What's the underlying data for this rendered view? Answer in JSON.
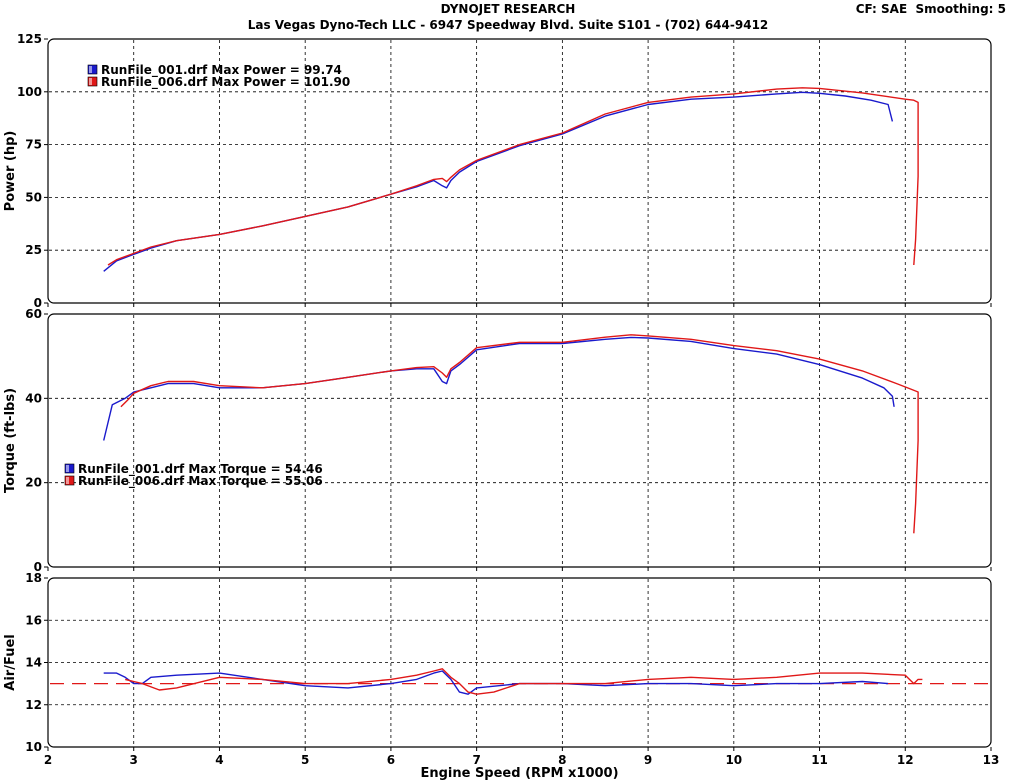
{
  "header": {
    "title": "DYNOJET RESEARCH",
    "subtitle": "Las Vegas Dyno-Tech LLC - 6947 Speedway Blvd. Suite S101 - (702) 644-9412",
    "cf": "CF: SAE",
    "smoothing": "Smoothing: 5"
  },
  "colors": {
    "run_001": "#1a1acc",
    "run_006": "#e01818",
    "afr_ref": "#e01818",
    "panel_border": "#000000",
    "grid": "#000000"
  },
  "chart_data": [
    {
      "type": "line",
      "ylabel": "Power (hp)",
      "xlabel": "",
      "xlim": [
        2,
        13
      ],
      "ylim": [
        0,
        125
      ],
      "x_ticks": [
        "2",
        "3",
        "4",
        "5",
        "6",
        "7",
        "8",
        "9",
        "10",
        "11",
        "12",
        "13"
      ],
      "y_ticks": [
        "0",
        "25",
        "50",
        "75",
        "100",
        "125"
      ],
      "grid": true,
      "legend_placement": "top-left",
      "legend": [
        {
          "label": "RunFile_001.drf Max Power = 99.74",
          "series": "RunFile_001.drf"
        },
        {
          "label": "RunFile_006.drf Max Power = 101.90",
          "series": "RunFile_006.drf"
        }
      ],
      "series": [
        {
          "name": "RunFile_001.drf",
          "color": "#1a1acc",
          "points": [
            [
              2.65,
              15
            ],
            [
              2.8,
              20
            ],
            [
              3,
              23
            ],
            [
              3.2,
              26
            ],
            [
              3.5,
              29.5
            ],
            [
              4,
              32.5
            ],
            [
              4.5,
              36.5
            ],
            [
              5,
              41
            ],
            [
              5.5,
              45.5
            ],
            [
              6,
              51.5
            ],
            [
              6.3,
              55
            ],
            [
              6.5,
              58
            ],
            [
              6.6,
              55.5
            ],
            [
              6.65,
              54.5
            ],
            [
              6.7,
              58
            ],
            [
              6.8,
              62
            ],
            [
              7,
              67
            ],
            [
              7.5,
              74.5
            ],
            [
              8,
              80
            ],
            [
              8.5,
              88.5
            ],
            [
              9,
              94
            ],
            [
              9.5,
              96.5
            ],
            [
              10,
              97.5
            ],
            [
              10.5,
              99
            ],
            [
              10.8,
              99.74
            ],
            [
              11,
              99.3
            ],
            [
              11.3,
              98
            ],
            [
              11.6,
              96
            ],
            [
              11.8,
              94
            ],
            [
              11.85,
              86
            ]
          ]
        },
        {
          "name": "RunFile_006.drf",
          "color": "#e01818",
          "points": [
            [
              2.7,
              18
            ],
            [
              2.8,
              20.5
            ],
            [
              3,
              23.5
            ],
            [
              3.2,
              26.5
            ],
            [
              3.5,
              29.5
            ],
            [
              4,
              32.5
            ],
            [
              4.5,
              36.5
            ],
            [
              5,
              41
            ],
            [
              5.5,
              45.5
            ],
            [
              6,
              51.5
            ],
            [
              6.3,
              55.5
            ],
            [
              6.5,
              58.5
            ],
            [
              6.6,
              59
            ],
            [
              6.65,
              57.5
            ],
            [
              6.7,
              59.5
            ],
            [
              6.8,
              63
            ],
            [
              7,
              67.5
            ],
            [
              7.5,
              75
            ],
            [
              8,
              80.5
            ],
            [
              8.5,
              89.5
            ],
            [
              9,
              95
            ],
            [
              9.5,
              97.5
            ],
            [
              10,
              99
            ],
            [
              10.5,
              101.3
            ],
            [
              10.8,
              101.9
            ],
            [
              11,
              101.6
            ],
            [
              11.5,
              99.5
            ],
            [
              12,
              96.5
            ],
            [
              12.1,
              96
            ],
            [
              12.15,
              95
            ],
            [
              12.15,
              60
            ],
            [
              12.12,
              30
            ],
            [
              12.1,
              18
            ]
          ]
        }
      ]
    },
    {
      "type": "line",
      "ylabel": "Torque (ft-lbs)",
      "xlabel": "",
      "xlim": [
        2,
        13
      ],
      "ylim": [
        0,
        60
      ],
      "x_ticks": [
        "2",
        "3",
        "4",
        "5",
        "6",
        "7",
        "8",
        "9",
        "10",
        "11",
        "12",
        "13"
      ],
      "y_ticks": [
        "0",
        "20",
        "40",
        "60"
      ],
      "grid": true,
      "legend_placement": "lower-left",
      "legend": [
        {
          "label": "RunFile_001.drf Max Torque = 54.46",
          "series": "RunFile_001.drf"
        },
        {
          "label": "RunFile_006.drf Max Torque = 55.06",
          "series": "RunFile_006.drf"
        }
      ],
      "series": [
        {
          "name": "RunFile_001.drf",
          "color": "#1a1acc",
          "points": [
            [
              2.65,
              30
            ],
            [
              2.75,
              38.5
            ],
            [
              2.9,
              40
            ],
            [
              3,
              41.5
            ],
            [
              3.2,
              42.5
            ],
            [
              3.4,
              43.5
            ],
            [
              3.7,
              43.5
            ],
            [
              4,
              42.5
            ],
            [
              4.5,
              42.5
            ],
            [
              5,
              43.5
            ],
            [
              5.5,
              45
            ],
            [
              6,
              46.5
            ],
            [
              6.3,
              47
            ],
            [
              6.5,
              47
            ],
            [
              6.6,
              44
            ],
            [
              6.65,
              43.5
            ],
            [
              6.7,
              46.5
            ],
            [
              6.8,
              48
            ],
            [
              7,
              51.5
            ],
            [
              7.5,
              53
            ],
            [
              8,
              53
            ],
            [
              8.5,
              54
            ],
            [
              8.8,
              54.46
            ],
            [
              9,
              54.3
            ],
            [
              9.5,
              53.5
            ],
            [
              10,
              51.8
            ],
            [
              10.5,
              50.5
            ],
            [
              11,
              48
            ],
            [
              11.5,
              44.8
            ],
            [
              11.75,
              42.5
            ],
            [
              11.85,
              40.5
            ],
            [
              11.87,
              38
            ]
          ]
        },
        {
          "name": "RunFile_006.drf",
          "color": "#e01818",
          "points": [
            [
              2.85,
              38
            ],
            [
              2.95,
              40
            ],
            [
              3,
              41.2
            ],
            [
              3.2,
              43
            ],
            [
              3.4,
              44
            ],
            [
              3.7,
              44
            ],
            [
              4,
              43
            ],
            [
              4.5,
              42.5
            ],
            [
              5,
              43.5
            ],
            [
              5.5,
              45
            ],
            [
              6,
              46.5
            ],
            [
              6.3,
              47.3
            ],
            [
              6.5,
              47.5
            ],
            [
              6.6,
              46
            ],
            [
              6.65,
              45
            ],
            [
              6.7,
              47
            ],
            [
              6.8,
              48.5
            ],
            [
              7,
              52
            ],
            [
              7.5,
              53.3
            ],
            [
              8,
              53.3
            ],
            [
              8.5,
              54.5
            ],
            [
              8.8,
              55.06
            ],
            [
              9,
              54.8
            ],
            [
              9.5,
              54
            ],
            [
              10,
              52.5
            ],
            [
              10.5,
              51.3
            ],
            [
              11,
              49.3
            ],
            [
              11.5,
              46.5
            ],
            [
              11.9,
              43.5
            ],
            [
              12.05,
              42.3
            ],
            [
              12.15,
              41.5
            ],
            [
              12.15,
              30
            ],
            [
              12.12,
              15
            ],
            [
              12.1,
              8
            ]
          ]
        }
      ]
    },
    {
      "type": "line",
      "ylabel": "Air/Fuel",
      "xlabel": "Engine Speed (RPM x1000)",
      "xlim": [
        2,
        13
      ],
      "ylim": [
        10,
        18
      ],
      "x_ticks": [
        "2",
        "3",
        "4",
        "5",
        "6",
        "7",
        "8",
        "9",
        "10",
        "11",
        "12",
        "13"
      ],
      "y_ticks": [
        "10",
        "12",
        "14",
        "16",
        "18"
      ],
      "grid": true,
      "reference_line": {
        "y": 13.0,
        "color": "#e01818",
        "style": "dashed"
      },
      "series": [
        {
          "name": "RunFile_001.drf",
          "color": "#1a1acc",
          "points": [
            [
              2.65,
              13.5
            ],
            [
              2.8,
              13.5
            ],
            [
              2.9,
              13.3
            ],
            [
              3,
              13.0
            ],
            [
              3.1,
              13.0
            ],
            [
              3.2,
              13.3
            ],
            [
              3.5,
              13.4
            ],
            [
              4,
              13.5
            ],
            [
              4.5,
              13.2
            ],
            [
              5,
              12.9
            ],
            [
              5.5,
              12.8
            ],
            [
              6,
              13.0
            ],
            [
              6.3,
              13.2
            ],
            [
              6.5,
              13.5
            ],
            [
              6.6,
              13.6
            ],
            [
              6.7,
              13.2
            ],
            [
              6.8,
              12.6
            ],
            [
              6.9,
              12.5
            ],
            [
              7,
              12.8
            ],
            [
              7.5,
              13.0
            ],
            [
              8,
              13.0
            ],
            [
              8.5,
              12.9
            ],
            [
              9,
              13.0
            ],
            [
              9.5,
              13.0
            ],
            [
              10,
              12.9
            ],
            [
              10.5,
              13.0
            ],
            [
              11,
              13.0
            ],
            [
              11.5,
              13.1
            ],
            [
              11.8,
              13.0
            ]
          ]
        },
        {
          "name": "RunFile_006.drf",
          "color": "#e01818",
          "points": [
            [
              2.9,
              13.2
            ],
            [
              3,
              13.1
            ],
            [
              3.1,
              13.0
            ],
            [
              3.3,
              12.7
            ],
            [
              3.5,
              12.8
            ],
            [
              4,
              13.3
            ],
            [
              4.5,
              13.2
            ],
            [
              5,
              13.0
            ],
            [
              5.5,
              13.0
            ],
            [
              6,
              13.2
            ],
            [
              6.3,
              13.4
            ],
            [
              6.5,
              13.6
            ],
            [
              6.6,
              13.7
            ],
            [
              6.7,
              13.3
            ],
            [
              6.8,
              13.0
            ],
            [
              6.9,
              12.6
            ],
            [
              7,
              12.5
            ],
            [
              7.2,
              12.6
            ],
            [
              7.5,
              13.0
            ],
            [
              8,
              13.0
            ],
            [
              8.5,
              13.0
            ],
            [
              9,
              13.2
            ],
            [
              9.5,
              13.3
            ],
            [
              10,
              13.2
            ],
            [
              10.5,
              13.3
            ],
            [
              11,
              13.5
            ],
            [
              11.5,
              13.5
            ],
            [
              12,
              13.4
            ],
            [
              12.1,
              13.0
            ],
            [
              12.15,
              13.2
            ],
            [
              12.2,
              13.2
            ]
          ]
        }
      ]
    }
  ]
}
